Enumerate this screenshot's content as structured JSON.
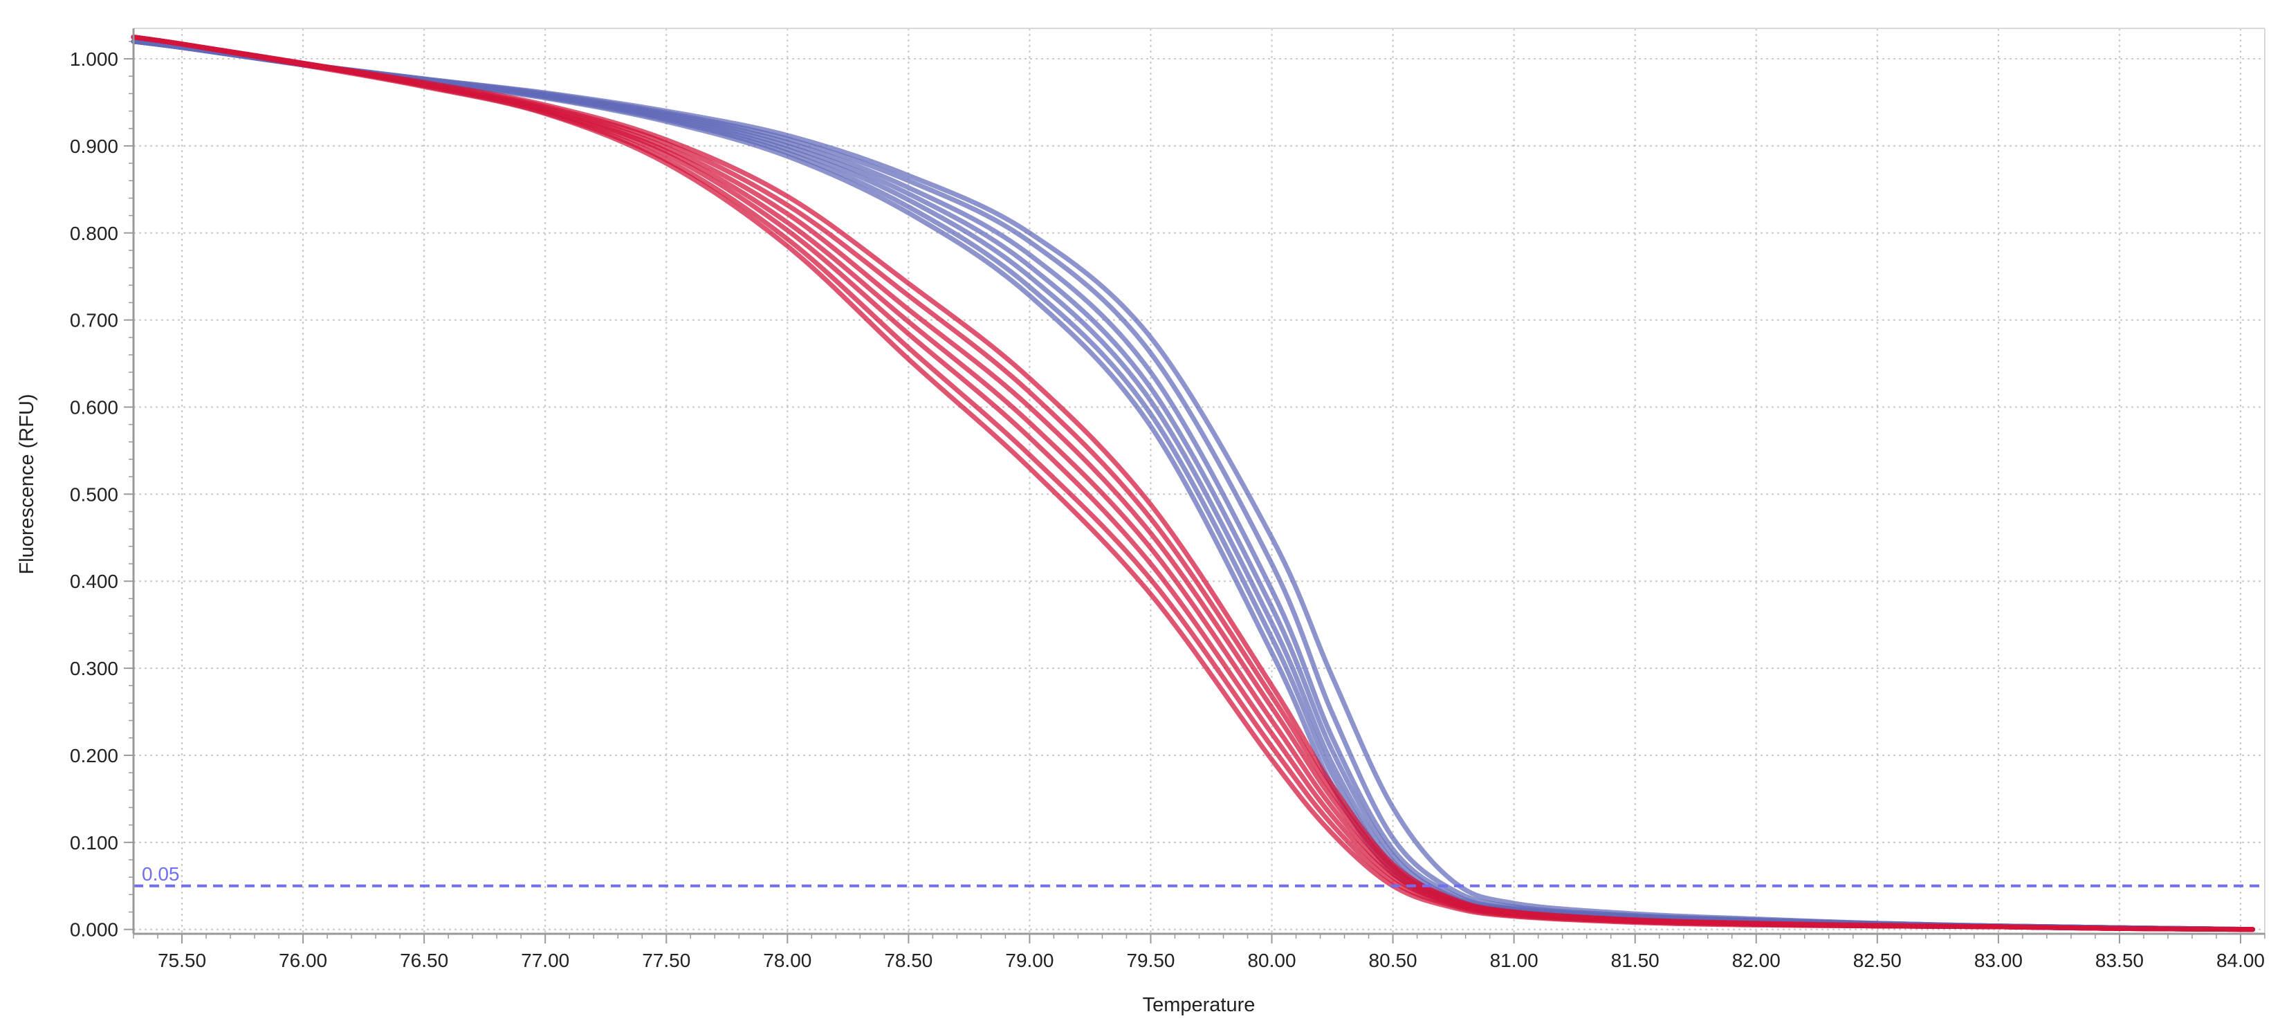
{
  "chart_data": {
    "type": "line",
    "title": "",
    "xlabel": "Temperature",
    "ylabel": "Fluorescence (RFU)",
    "xlim": [
      75.3,
      84.1
    ],
    "ylim": [
      -0.005,
      1.035
    ],
    "x_ticks": [
      "75.50",
      "76.00",
      "76.50",
      "77.00",
      "77.50",
      "78.00",
      "78.50",
      "79.00",
      "79.50",
      "80.00",
      "80.50",
      "81.00",
      "81.50",
      "82.00",
      "82.50",
      "83.00",
      "83.50",
      "84.00"
    ],
    "y_ticks": [
      "0.000",
      "0.100",
      "0.200",
      "0.300",
      "0.400",
      "0.500",
      "0.600",
      "0.700",
      "0.800",
      "0.900",
      "1.000"
    ],
    "grid": true,
    "threshold": {
      "value": 0.05,
      "label": "0.05",
      "color": "#6f6ff0"
    },
    "colors": {
      "red_group": "#d2143a",
      "blue_group": "#6169b8",
      "axis": "#9a9a9a",
      "grid": "#c8c8c8"
    },
    "series": [
      {
        "group": "red",
        "x": [
          75.3,
          75.5,
          76.0,
          76.5,
          77.0,
          77.5,
          78.0,
          78.5,
          79.0,
          79.5,
          80.0,
          80.25,
          80.5,
          80.75,
          81.0,
          81.5,
          82.0,
          82.5,
          83.0,
          83.5,
          84.05
        ],
        "y": [
          1.025,
          1.017,
          0.993,
          0.968,
          0.937,
          0.88,
          0.785,
          0.655,
          0.53,
          0.385,
          0.195,
          0.11,
          0.05,
          0.025,
          0.015,
          0.008,
          0.005,
          0.004,
          0.003,
          0.001,
          0.0
        ]
      },
      {
        "group": "red",
        "x": [
          75.3,
          75.5,
          76.0,
          76.5,
          77.0,
          77.5,
          78.0,
          78.5,
          79.0,
          79.5,
          80.0,
          80.25,
          80.5,
          80.75,
          81.0,
          81.5,
          82.0,
          82.5,
          83.0,
          83.5,
          84.05
        ],
        "y": [
          1.025,
          1.017,
          0.994,
          0.969,
          0.938,
          0.884,
          0.793,
          0.668,
          0.545,
          0.402,
          0.21,
          0.12,
          0.055,
          0.027,
          0.016,
          0.009,
          0.006,
          0.004,
          0.003,
          0.001,
          0.0
        ]
      },
      {
        "group": "red",
        "x": [
          75.3,
          75.5,
          76.0,
          76.5,
          77.0,
          77.5,
          78.0,
          78.5,
          79.0,
          79.5,
          80.0,
          80.25,
          80.5,
          80.75,
          81.0,
          81.5,
          82.0,
          82.5,
          83.0,
          83.5,
          84.05
        ],
        "y": [
          1.025,
          1.017,
          0.994,
          0.97,
          0.94,
          0.89,
          0.803,
          0.684,
          0.565,
          0.42,
          0.225,
          0.13,
          0.06,
          0.029,
          0.017,
          0.009,
          0.006,
          0.004,
          0.003,
          0.001,
          0.0
        ]
      },
      {
        "group": "red",
        "x": [
          75.3,
          75.5,
          76.0,
          76.5,
          77.0,
          77.5,
          78.0,
          78.5,
          79.0,
          79.5,
          80.0,
          80.25,
          80.5,
          80.75,
          81.0,
          81.5,
          82.0,
          82.5,
          83.0,
          83.5,
          84.05
        ],
        "y": [
          1.025,
          1.017,
          0.994,
          0.97,
          0.941,
          0.894,
          0.812,
          0.698,
          0.582,
          0.438,
          0.24,
          0.14,
          0.064,
          0.03,
          0.018,
          0.01,
          0.006,
          0.004,
          0.003,
          0.001,
          0.0
        ]
      },
      {
        "group": "red",
        "x": [
          75.3,
          75.5,
          76.0,
          76.5,
          77.0,
          77.5,
          78.0,
          78.5,
          79.0,
          79.5,
          80.0,
          80.25,
          80.5,
          80.75,
          81.0,
          81.5,
          82.0,
          82.5,
          83.0,
          83.5,
          84.05
        ],
        "y": [
          1.025,
          1.017,
          0.995,
          0.971,
          0.943,
          0.898,
          0.822,
          0.712,
          0.6,
          0.455,
          0.255,
          0.15,
          0.068,
          0.032,
          0.019,
          0.01,
          0.006,
          0.004,
          0.003,
          0.001,
          0.0
        ]
      },
      {
        "group": "red",
        "x": [
          75.3,
          75.5,
          76.0,
          76.5,
          77.0,
          77.5,
          78.0,
          78.5,
          79.0,
          79.5,
          80.0,
          80.25,
          80.5,
          80.75,
          81.0,
          81.5,
          82.0,
          82.5,
          83.0,
          83.5,
          84.05
        ],
        "y": [
          1.025,
          1.017,
          0.995,
          0.972,
          0.945,
          0.903,
          0.832,
          0.728,
          0.617,
          0.472,
          0.268,
          0.158,
          0.072,
          0.034,
          0.02,
          0.011,
          0.007,
          0.004,
          0.003,
          0.001,
          0.0
        ]
      },
      {
        "group": "red",
        "x": [
          75.3,
          75.5,
          76.0,
          76.5,
          77.0,
          77.5,
          78.0,
          78.5,
          79.0,
          79.5,
          80.0,
          80.25,
          80.5,
          80.75,
          81.0,
          81.5,
          82.0,
          82.5,
          83.0,
          83.5,
          84.05
        ],
        "y": [
          1.025,
          1.017,
          0.995,
          0.973,
          0.947,
          0.907,
          0.842,
          0.742,
          0.633,
          0.488,
          0.28,
          0.165,
          0.075,
          0.035,
          0.02,
          0.011,
          0.007,
          0.005,
          0.003,
          0.001,
          0.0
        ]
      },
      {
        "group": "blue",
        "x": [
          75.3,
          75.5,
          76.0,
          76.5,
          77.0,
          77.5,
          78.0,
          78.5,
          79.0,
          79.5,
          80.0,
          80.25,
          80.5,
          80.75,
          81.0,
          81.5,
          82.0,
          82.5,
          83.0,
          83.5,
          84.05
        ],
        "y": [
          1.02,
          1.013,
          0.993,
          0.974,
          0.955,
          0.928,
          0.888,
          0.823,
          0.728,
          0.578,
          0.318,
          0.165,
          0.065,
          0.03,
          0.02,
          0.013,
          0.009,
          0.006,
          0.004,
          0.002,
          0.0
        ]
      },
      {
        "group": "blue",
        "x": [
          75.3,
          75.5,
          76.0,
          76.5,
          77.0,
          77.5,
          78.0,
          78.5,
          79.0,
          79.5,
          80.0,
          80.25,
          80.5,
          80.75,
          81.0,
          81.5,
          82.0,
          82.5,
          83.0,
          83.5,
          84.05
        ],
        "y": [
          1.02,
          1.013,
          0.993,
          0.975,
          0.956,
          0.93,
          0.892,
          0.83,
          0.738,
          0.592,
          0.335,
          0.178,
          0.072,
          0.032,
          0.021,
          0.014,
          0.009,
          0.006,
          0.004,
          0.002,
          0.0
        ]
      },
      {
        "group": "blue",
        "x": [
          75.3,
          75.5,
          76.0,
          76.5,
          77.0,
          77.5,
          78.0,
          78.5,
          79.0,
          79.5,
          80.0,
          80.25,
          80.5,
          80.75,
          81.0,
          81.5,
          82.0,
          82.5,
          83.0,
          83.5,
          84.05
        ],
        "y": [
          1.02,
          1.013,
          0.993,
          0.975,
          0.957,
          0.932,
          0.896,
          0.838,
          0.75,
          0.607,
          0.352,
          0.19,
          0.078,
          0.034,
          0.022,
          0.014,
          0.01,
          0.006,
          0.004,
          0.002,
          0.0
        ]
      },
      {
        "group": "blue",
        "x": [
          75.3,
          75.5,
          76.0,
          76.5,
          77.0,
          77.5,
          78.0,
          78.5,
          79.0,
          79.5,
          80.0,
          80.25,
          80.5,
          80.75,
          81.0,
          81.5,
          82.0,
          82.5,
          83.0,
          83.5,
          84.05
        ],
        "y": [
          1.02,
          1.013,
          0.994,
          0.976,
          0.958,
          0.934,
          0.9,
          0.845,
          0.762,
          0.622,
          0.37,
          0.205,
          0.085,
          0.037,
          0.023,
          0.015,
          0.01,
          0.006,
          0.004,
          0.002,
          0.0
        ]
      },
      {
        "group": "blue",
        "x": [
          75.3,
          75.5,
          76.0,
          76.5,
          77.0,
          77.5,
          78.0,
          78.5,
          79.0,
          79.5,
          80.0,
          80.25,
          80.5,
          80.75,
          81.0,
          81.5,
          82.0,
          82.5,
          83.0,
          83.5,
          84.05
        ],
        "y": [
          1.02,
          1.013,
          0.994,
          0.976,
          0.959,
          0.936,
          0.904,
          0.852,
          0.775,
          0.64,
          0.39,
          0.22,
          0.092,
          0.04,
          0.024,
          0.015,
          0.01,
          0.007,
          0.004,
          0.002,
          0.0
        ]
      },
      {
        "group": "blue",
        "x": [
          75.3,
          75.5,
          76.0,
          76.5,
          77.0,
          77.5,
          78.0,
          78.5,
          79.0,
          79.5,
          80.0,
          80.25,
          80.5,
          80.75,
          81.0,
          81.5,
          82.0,
          82.5,
          83.0,
          83.5,
          84.05
        ],
        "y": [
          1.02,
          1.013,
          0.994,
          0.977,
          0.96,
          0.938,
          0.908,
          0.86,
          0.79,
          0.662,
          0.42,
          0.248,
          0.105,
          0.045,
          0.026,
          0.016,
          0.011,
          0.007,
          0.004,
          0.002,
          0.0
        ]
      },
      {
        "group": "blue",
        "x": [
          75.3,
          75.5,
          76.0,
          76.5,
          77.0,
          77.5,
          78.0,
          78.5,
          79.0,
          79.5,
          80.0,
          80.25,
          80.5,
          80.75,
          81.0,
          81.5,
          82.0,
          82.5,
          83.0,
          83.5,
          84.05
        ],
        "y": [
          1.02,
          1.013,
          0.994,
          0.977,
          0.961,
          0.94,
          0.912,
          0.866,
          0.8,
          0.68,
          0.45,
          0.29,
          0.14,
          0.055,
          0.03,
          0.018,
          0.012,
          0.007,
          0.004,
          0.002,
          0.0
        ]
      }
    ]
  }
}
